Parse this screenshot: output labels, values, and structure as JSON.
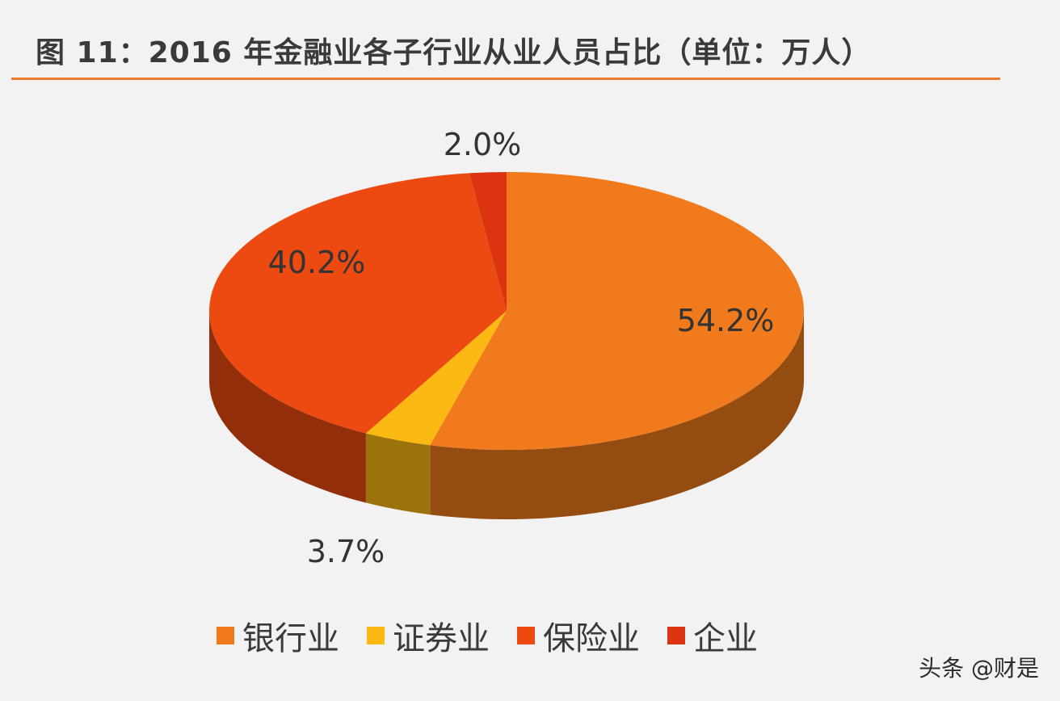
{
  "title": "图 11：2016 年金融业各子行业从业人员占比（单位：万人）",
  "watermark": "头条 @财是",
  "colors": {
    "accent_rule": "#ee7a2a",
    "banking": "#f07a1c",
    "securities": "#fcb813",
    "insurance": "#ec4a10",
    "other": "#dc3410"
  },
  "chart_data": {
    "type": "pie",
    "style": "3d",
    "title": "图 11：2016 年金融业各子行业从业人员占比（单位：万人）",
    "unit": "万人",
    "legend_position": "bottom",
    "categories": [
      "银行业",
      "证券业",
      "保险业",
      "企业"
    ],
    "values": [
      54.2,
      3.7,
      40.2,
      2.0
    ],
    "labels": [
      "54.2%",
      "3.7%",
      "40.2%",
      "2.0%"
    ]
  }
}
